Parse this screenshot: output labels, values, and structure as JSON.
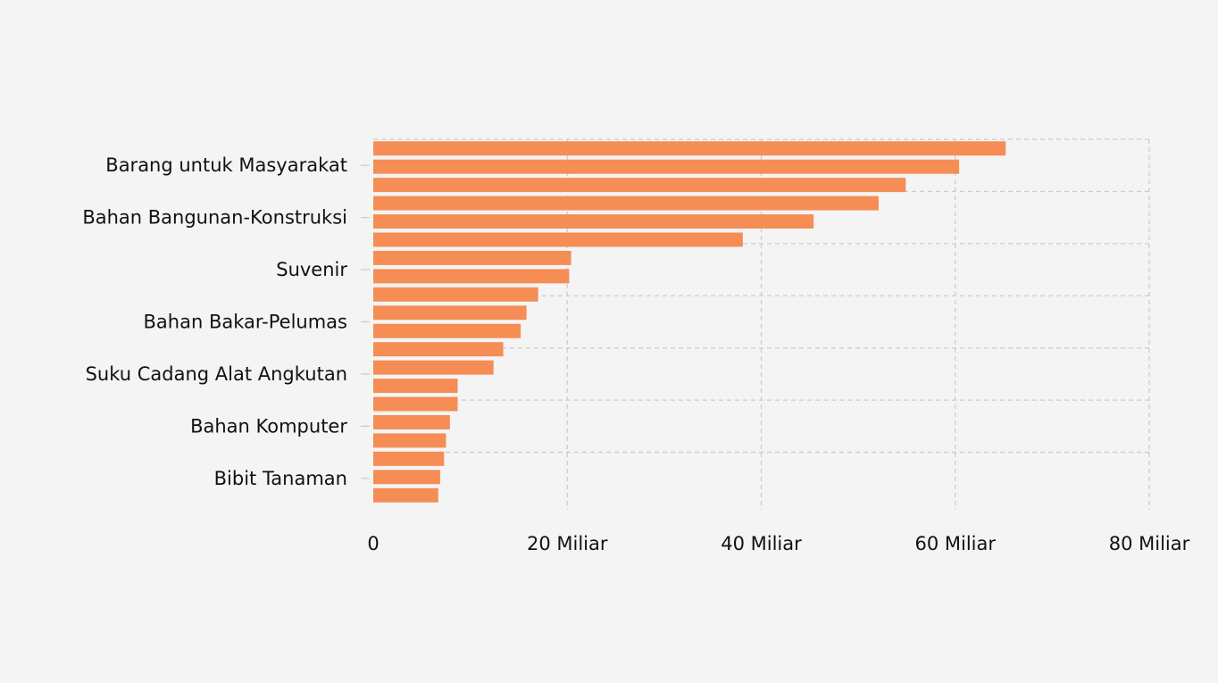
{
  "chart_data": {
    "type": "bar",
    "orientation": "horizontal",
    "title": "",
    "xlabel": "",
    "ylabel": "",
    "xlim": [
      0,
      80
    ],
    "value_unit": "Miliar",
    "grid": true,
    "bar_color": "#f58d55",
    "background_color": "#f4f4f4",
    "labeled_categories": [
      "Barang untuk Masyarakat",
      "Bahan Bangunan-Konstruksi",
      "Suvenir",
      "Bahan Bakar-Pelumas",
      "Suku Cadang Alat Angkutan",
      "Bahan Komputer",
      "Bibit Tanaman"
    ],
    "values": [
      65.2,
      60.4,
      54.9,
      52.1,
      45.4,
      38.1,
      20.4,
      20.2,
      17.0,
      15.8,
      15.2,
      13.4,
      12.4,
      8.7,
      8.7,
      7.9,
      7.5,
      7.3,
      6.9,
      6.7
    ],
    "x_tick_labels": [
      "0",
      "20 Miliar",
      "40 Miliar",
      "60 Miliar",
      "80 Miliar"
    ]
  }
}
